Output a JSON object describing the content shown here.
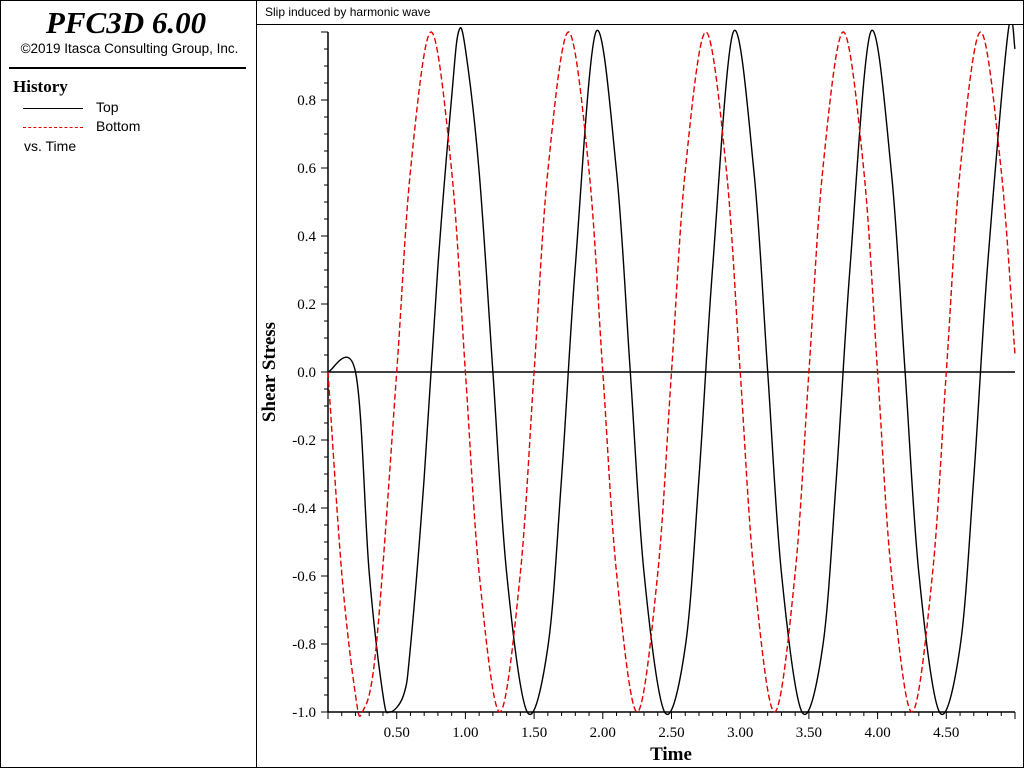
{
  "app": {
    "title": "PFC3D 6.00",
    "copyright": "©2019 Itasca Consulting Group, Inc."
  },
  "legend": {
    "heading": "History",
    "items": [
      {
        "label": "Top",
        "color": "#000000",
        "style": "solid"
      },
      {
        "label": "Bottom",
        "color": "#e00000",
        "style": "dashed"
      }
    ],
    "footer": "vs. Time"
  },
  "plot": {
    "title": "Slip induced by harmonic wave"
  },
  "chart_data": {
    "type": "line",
    "title": "Slip induced by harmonic wave",
    "xlabel": "Time",
    "ylabel": "Shear Stress",
    "xlim": [
      0,
      5.0
    ],
    "ylim": [
      -1.0,
      1.0
    ],
    "x_ticks": [
      "0.50",
      "1.00",
      "1.50",
      "2.00",
      "2.50",
      "3.00",
      "3.50",
      "4.00",
      "4.50"
    ],
    "y_ticks": [
      "0.8",
      "0.6",
      "0.4",
      "0.2",
      "0.0",
      "-0.2",
      "-0.4",
      "-0.6",
      "-0.8",
      "-1.0"
    ],
    "grid": false,
    "legend_position": "left-panel",
    "series": [
      {
        "name": "Top",
        "color": "#000000",
        "style": "solid",
        "points": [
          [
            0.0,
            0.0
          ],
          [
            0.2,
            0.0
          ],
          [
            0.3,
            -0.59
          ],
          [
            0.4,
            -0.95
          ],
          [
            0.45,
            -1.0
          ],
          [
            0.55,
            -0.95
          ],
          [
            0.6,
            -0.81
          ],
          [
            0.7,
            -0.31
          ],
          [
            0.8,
            0.31
          ],
          [
            0.9,
            0.81
          ],
          [
            0.95,
            1.0
          ],
          [
            1.0,
            0.95
          ],
          [
            1.1,
            0.59
          ],
          [
            1.2,
            0.0
          ],
          [
            1.3,
            -0.59
          ],
          [
            1.45,
            -1.0
          ],
          [
            1.6,
            -0.81
          ],
          [
            1.7,
            -0.31
          ],
          [
            1.8,
            0.31
          ],
          [
            1.95,
            1.0
          ],
          [
            2.1,
            0.59
          ],
          [
            2.2,
            0.0
          ],
          [
            2.3,
            -0.59
          ],
          [
            2.45,
            -1.0
          ],
          [
            2.6,
            -0.81
          ],
          [
            2.7,
            -0.31
          ],
          [
            2.8,
            0.31
          ],
          [
            2.95,
            1.0
          ],
          [
            3.1,
            0.59
          ],
          [
            3.2,
            0.0
          ],
          [
            3.3,
            -0.59
          ],
          [
            3.45,
            -1.0
          ],
          [
            3.6,
            -0.81
          ],
          [
            3.7,
            -0.31
          ],
          [
            3.8,
            0.31
          ],
          [
            3.95,
            1.0
          ],
          [
            4.1,
            0.59
          ],
          [
            4.2,
            0.0
          ],
          [
            4.3,
            -0.59
          ],
          [
            4.45,
            -1.0
          ],
          [
            4.6,
            -0.81
          ],
          [
            4.7,
            -0.31
          ],
          [
            4.8,
            0.31
          ],
          [
            4.95,
            1.0
          ],
          [
            5.0,
            0.95
          ]
        ]
      },
      {
        "name": "Bottom",
        "color": "#e00000",
        "style": "dashed",
        "points": [
          [
            0.0,
            0.0
          ],
          [
            0.1,
            -0.59
          ],
          [
            0.2,
            -0.95
          ],
          [
            0.25,
            -1.0
          ],
          [
            0.35,
            -0.81
          ],
          [
            0.5,
            0.0
          ],
          [
            0.6,
            0.59
          ],
          [
            0.75,
            1.0
          ],
          [
            0.9,
            0.59
          ],
          [
            1.0,
            0.0
          ],
          [
            1.1,
            -0.59
          ],
          [
            1.25,
            -1.0
          ],
          [
            1.4,
            -0.59
          ],
          [
            1.5,
            0.0
          ],
          [
            1.6,
            0.59
          ],
          [
            1.75,
            1.0
          ],
          [
            1.9,
            0.59
          ],
          [
            2.0,
            0.0
          ],
          [
            2.1,
            -0.59
          ],
          [
            2.25,
            -1.0
          ],
          [
            2.4,
            -0.59
          ],
          [
            2.5,
            0.0
          ],
          [
            2.6,
            0.59
          ],
          [
            2.75,
            1.0
          ],
          [
            2.9,
            0.59
          ],
          [
            3.0,
            0.0
          ],
          [
            3.1,
            -0.59
          ],
          [
            3.25,
            -1.0
          ],
          [
            3.4,
            -0.59
          ],
          [
            3.5,
            0.0
          ],
          [
            3.6,
            0.59
          ],
          [
            3.75,
            1.0
          ],
          [
            3.9,
            0.59
          ],
          [
            4.0,
            0.0
          ],
          [
            4.1,
            -0.59
          ],
          [
            4.25,
            -1.0
          ],
          [
            4.4,
            -0.59
          ],
          [
            4.5,
            0.0
          ],
          [
            4.6,
            0.59
          ],
          [
            4.75,
            1.0
          ],
          [
            4.9,
            0.59
          ],
          [
            5.0,
            0.05
          ]
        ]
      }
    ]
  }
}
